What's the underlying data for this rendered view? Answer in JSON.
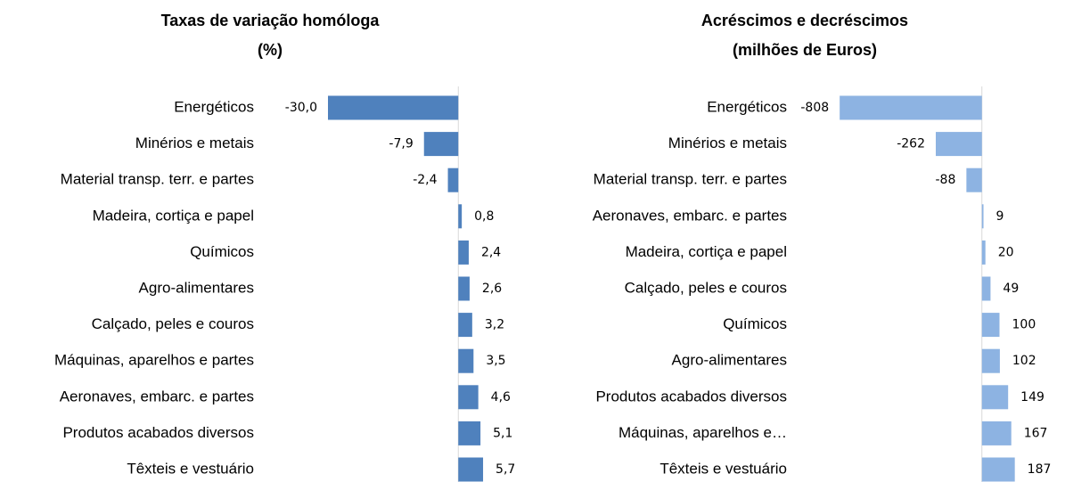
{
  "chart_data": [
    {
      "type": "hbar",
      "title": [
        "Taxas de variação homóloga",
        "(%)"
      ],
      "categories": [
        "Energéticos",
        "Minérios e metais",
        "Material transp. terr. e partes",
        "Madeira, cortiça e papel",
        "Químicos",
        "Agro-alimentares",
        "Calçado, peles e couros",
        "Máquinas, aparelhos e partes",
        "Aeronaves, embarc. e partes",
        "Produtos acabados diversos",
        "Têxteis e vestuário"
      ],
      "values": [
        -30.0,
        -7.9,
        -2.4,
        0.8,
        2.4,
        2.6,
        3.2,
        3.5,
        4.6,
        5.1,
        5.7
      ],
      "value_labels": [
        "-30,0",
        "-7,9",
        "-2,4",
        "0,8",
        "2,4",
        "2,6",
        "3,2",
        "3,5",
        "4,6",
        "5,1",
        "5,7"
      ],
      "color": "#4f81bd",
      "xlim": [
        -30,
        10
      ]
    },
    {
      "type": "hbar",
      "title": [
        "Acréscimos e decréscimos",
        "(milhões de Euros)"
      ],
      "categories": [
        "Energéticos",
        "Minérios e metais",
        "Material transp. terr. e partes",
        "Aeronaves, embarc. e partes",
        "Madeira, cortiça e papel",
        "Calçado, peles e couros",
        "Químicos",
        "Agro-alimentares",
        "Produtos acabados diversos",
        "Máquinas, aparelhos e…",
        "Têxteis e vestuário"
      ],
      "values": [
        -808,
        -262,
        -88,
        9,
        20,
        49,
        100,
        102,
        149,
        167,
        187
      ],
      "color": "#8db3e2",
      "xlim": [
        -900,
        300
      ]
    }
  ]
}
